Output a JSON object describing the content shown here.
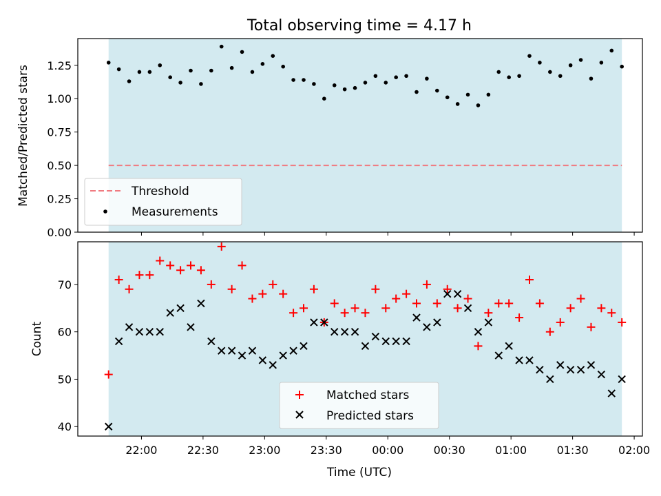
{
  "figure": {
    "title": "Total observing time = 4.17 h",
    "xlabel": "Time (UTC)"
  },
  "chart_data": [
    {
      "type": "scatter",
      "ylabel": "Matched/Predicted stars",
      "ylim": [
        0,
        1.45
      ],
      "yticks": [
        0.0,
        0.25,
        0.5,
        0.75,
        1.0,
        1.25
      ],
      "ytick_labels": [
        "0.00",
        "0.25",
        "0.50",
        "0.75",
        "1.00",
        "1.25"
      ],
      "xlim": [
        "21:29",
        "02:04"
      ],
      "observing_window": [
        "21:44",
        "01:54"
      ],
      "threshold": 0.5,
      "legend": {
        "placement": "lower-left",
        "entries": [
          "Threshold",
          "Measurements"
        ]
      },
      "grid": false,
      "colors": {
        "window": "#d3eaf0",
        "threshold": "#f07a80",
        "points": "#000000"
      },
      "series": [
        {
          "name": "Measurements",
          "x": [
            "21:44",
            "21:49",
            "21:54",
            "21:59",
            "22:04",
            "22:09",
            "22:14",
            "22:19",
            "22:24",
            "22:29",
            "22:34",
            "22:39",
            "22:44",
            "22:49",
            "22:54",
            "22:59",
            "23:04",
            "23:09",
            "23:14",
            "23:19",
            "23:24",
            "23:29",
            "23:34",
            "23:39",
            "23:44",
            "23:49",
            "23:54",
            "23:59",
            "00:04",
            "00:09",
            "00:14",
            "00:19",
            "00:24",
            "00:29",
            "00:34",
            "00:39",
            "00:44",
            "00:49",
            "00:54",
            "00:59",
            "01:04",
            "01:09",
            "01:14",
            "01:19",
            "01:24",
            "01:29",
            "01:34",
            "01:39",
            "01:44",
            "01:49",
            "01:54"
          ],
          "y": [
            1.27,
            1.22,
            1.13,
            1.2,
            1.2,
            1.25,
            1.16,
            1.12,
            1.21,
            1.11,
            1.21,
            1.39,
            1.23,
            1.35,
            1.2,
            1.26,
            1.32,
            1.24,
            1.14,
            1.14,
            1.11,
            1.0,
            1.1,
            1.07,
            1.08,
            1.12,
            1.17,
            1.12,
            1.16,
            1.17,
            1.05,
            1.15,
            1.06,
            1.01,
            0.96,
            1.03,
            0.95,
            1.03,
            1.2,
            1.16,
            1.17,
            1.32,
            1.27,
            1.2,
            1.17,
            1.25,
            1.29,
            1.15,
            1.27,
            1.36,
            1.24
          ]
        }
      ]
    },
    {
      "type": "scatter",
      "ylabel": "Count",
      "ylim": [
        38,
        79
      ],
      "yticks": [
        40,
        50,
        60,
        70
      ],
      "ytick_labels": [
        "40",
        "50",
        "60",
        "70"
      ],
      "xlim": [
        "21:29",
        "02:04"
      ],
      "xtick_values": [
        "22:00",
        "22:30",
        "23:00",
        "23:30",
        "00:00",
        "00:30",
        "01:00",
        "01:30",
        "02:00"
      ],
      "observing_window": [
        "21:44",
        "01:54"
      ],
      "legend": {
        "placement": "lower-center",
        "entries": [
          "Matched stars",
          "Predicted stars"
        ]
      },
      "grid": false,
      "colors": {
        "window": "#d3eaf0",
        "matched": "#ff0000",
        "predicted": "#000000"
      },
      "series": [
        {
          "name": "Matched stars",
          "x": [
            "21:44",
            "21:49",
            "21:54",
            "21:59",
            "22:04",
            "22:09",
            "22:14",
            "22:19",
            "22:24",
            "22:29",
            "22:34",
            "22:39",
            "22:44",
            "22:49",
            "22:54",
            "22:59",
            "23:04",
            "23:09",
            "23:14",
            "23:19",
            "23:24",
            "23:29",
            "23:34",
            "23:39",
            "23:44",
            "23:49",
            "23:54",
            "23:59",
            "00:04",
            "00:09",
            "00:14",
            "00:19",
            "00:24",
            "00:29",
            "00:34",
            "00:39",
            "00:44",
            "00:49",
            "00:54",
            "00:59",
            "01:04",
            "01:09",
            "01:14",
            "01:19",
            "01:24",
            "01:29",
            "01:34",
            "01:39",
            "01:44",
            "01:49",
            "01:54"
          ],
          "y": [
            51,
            71,
            69,
            72,
            72,
            75,
            74,
            73,
            74,
            73,
            70,
            78,
            69,
            74,
            67,
            68,
            70,
            68,
            64,
            65,
            69,
            62,
            66,
            64,
            65,
            64,
            69,
            65,
            67,
            68,
            66,
            70,
            66,
            69,
            65,
            67,
            57,
            64,
            66,
            66,
            63,
            71,
            66,
            60,
            62,
            65,
            67,
            61,
            65,
            64,
            62
          ]
        },
        {
          "name": "Predicted stars",
          "x": [
            "21:44",
            "21:49",
            "21:54",
            "21:59",
            "22:04",
            "22:09",
            "22:14",
            "22:19",
            "22:24",
            "22:29",
            "22:34",
            "22:39",
            "22:44",
            "22:49",
            "22:54",
            "22:59",
            "23:04",
            "23:09",
            "23:14",
            "23:19",
            "23:24",
            "23:29",
            "23:34",
            "23:39",
            "23:44",
            "23:49",
            "23:54",
            "23:59",
            "00:04",
            "00:09",
            "00:14",
            "00:19",
            "00:24",
            "00:29",
            "00:34",
            "00:39",
            "00:44",
            "00:49",
            "00:54",
            "00:59",
            "01:04",
            "01:09",
            "01:14",
            "01:19",
            "01:24",
            "01:29",
            "01:34",
            "01:39",
            "01:44",
            "01:49",
            "01:54"
          ],
          "y": [
            40,
            58,
            61,
            60,
            60,
            60,
            64,
            65,
            61,
            66,
            58,
            56,
            56,
            55,
            56,
            54,
            53,
            55,
            56,
            57,
            62,
            62,
            60,
            60,
            60,
            57,
            59,
            58,
            58,
            58,
            63,
            61,
            62,
            68,
            68,
            65,
            60,
            62,
            55,
            57,
            54,
            54,
            52,
            50,
            53,
            52,
            52,
            53,
            51,
            47,
            50
          ]
        }
      ]
    }
  ]
}
